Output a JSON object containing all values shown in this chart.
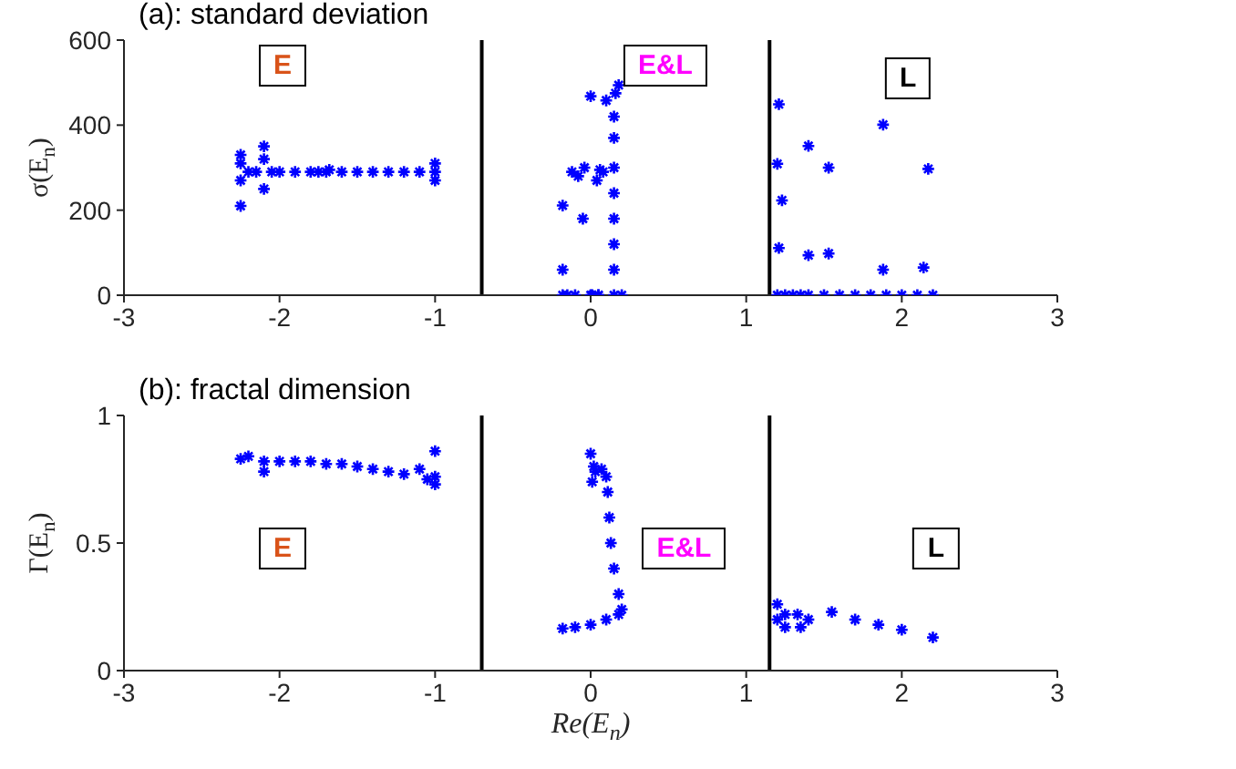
{
  "chart_data": [
    {
      "type": "scatter",
      "title": "(a): standard deviation",
      "ylabel": "σ(E$_{n}$)",
      "xlim": [
        -3,
        3
      ],
      "xticks": [
        -3,
        -2,
        -1,
        0,
        1,
        2,
        3
      ],
      "ylim": [
        0,
        600
      ],
      "yticks": [
        0,
        200,
        400,
        600
      ],
      "grid": false,
      "marker": "cross",
      "ref_lines": [
        {
          "axis": "x",
          "value": -0.7,
          "color": "#000000"
        },
        {
          "axis": "x",
          "value": 1.15,
          "color": "#000000"
        }
      ],
      "annotations": [
        "E",
        "E&L",
        "L"
      ],
      "series": [
        {
          "color": "#0000ff",
          "x": [
            -2.25,
            -2.25,
            -2.25,
            -2.25,
            -2.2,
            -2.15,
            -2.1,
            -2.1,
            -2.1,
            -2.05,
            -2.0,
            -1.9,
            -1.8,
            -1.75,
            -1.7,
            -1.68,
            -1.6,
            -1.5,
            -1.4,
            -1.3,
            -1.2,
            -1.1,
            -1.0,
            -1.0,
            -1.0,
            -0.18,
            -0.18,
            -0.18,
            -0.15,
            -0.1,
            -0.05,
            -0.12,
            -0.08,
            -0.04,
            0.0,
            0.01,
            0.04,
            0.06,
            0.08,
            0.05,
            0.1,
            0.16,
            0.18,
            0.15,
            0.15,
            0.15,
            0.15,
            0.15,
            0.15,
            0.15,
            0.15,
            0.2,
            0.05,
            0.0,
            1.2,
            1.21,
            1.2,
            1.23,
            1.21,
            1.25,
            1.3,
            1.35,
            1.4,
            1.4,
            1.4,
            1.5,
            1.53,
            1.53,
            1.6,
            1.7,
            1.8,
            1.88,
            1.88,
            1.9,
            2.0,
            2.1,
            2.14,
            2.17,
            2.2
          ],
          "values": [
            210,
            270,
            310,
            330,
            290,
            290,
            250,
            320,
            350,
            290,
            290,
            290,
            290,
            290,
            290,
            295,
            290,
            290,
            290,
            290,
            290,
            290,
            270,
            290,
            310,
            0,
            60,
            211,
            0,
            0,
            180,
            290,
            280,
            300,
            468,
            0,
            270,
            295,
            290,
            0,
            458,
            475,
            494,
            0,
            60,
            120,
            180,
            240,
            300,
            370,
            420,
            0,
            0,
            0,
            0,
            449,
            309,
            223,
            111,
            0,
            0,
            0,
            0,
            94,
            351,
            0,
            98,
            300,
            0,
            0,
            0,
            401,
            60,
            0,
            0,
            0,
            65,
            297,
            0
          ]
        }
      ]
    },
    {
      "type": "scatter",
      "title": "(b): fractal dimension",
      "xlabel": "Re(E$_{n}$)",
      "ylabel": "Γ(E$_{n}$)",
      "xlim": [
        -3,
        3
      ],
      "xticks": [
        -3,
        -2,
        -1,
        0,
        1,
        2,
        3
      ],
      "ylim": [
        0,
        1
      ],
      "yticks": [
        0,
        0.5,
        1
      ],
      "grid": false,
      "marker": "cross",
      "ref_lines": [
        {
          "axis": "x",
          "value": -0.7,
          "color": "#000000"
        },
        {
          "axis": "x",
          "value": 1.15,
          "color": "#000000"
        }
      ],
      "annotations": [
        "E",
        "E&L",
        "L"
      ],
      "series": [
        {
          "color": "#0000ff",
          "x": [
            -2.25,
            -2.2,
            -2.1,
            -2.1,
            -2.0,
            -1.9,
            -1.8,
            -1.7,
            -1.6,
            -1.5,
            -1.4,
            -1.3,
            -1.2,
            -1.1,
            -1.05,
            -1.0,
            -1.0,
            -1.0,
            -0.18,
            -0.1,
            0.0,
            0.1,
            0.18,
            0.2,
            0.18,
            0.15,
            0.13,
            0.12,
            0.11,
            0.1,
            0.07,
            0.03,
            0.01,
            0.0,
            0.02,
            1.2,
            1.2,
            1.25,
            1.33,
            1.4,
            1.35,
            1.25,
            1.55,
            1.7,
            1.85,
            2.0,
            2.2
          ],
          "values": [
            0.83,
            0.84,
            0.82,
            0.78,
            0.82,
            0.82,
            0.82,
            0.81,
            0.81,
            0.8,
            0.79,
            0.78,
            0.77,
            0.79,
            0.75,
            0.73,
            0.76,
            0.86,
            0.165,
            0.17,
            0.18,
            0.2,
            0.22,
            0.24,
            0.3,
            0.4,
            0.5,
            0.6,
            0.7,
            0.76,
            0.79,
            0.78,
            0.74,
            0.85,
            0.8,
            0.2,
            0.26,
            0.22,
            0.22,
            0.2,
            0.17,
            0.17,
            0.23,
            0.2,
            0.18,
            0.16,
            0.13
          ]
        }
      ]
    }
  ]
}
